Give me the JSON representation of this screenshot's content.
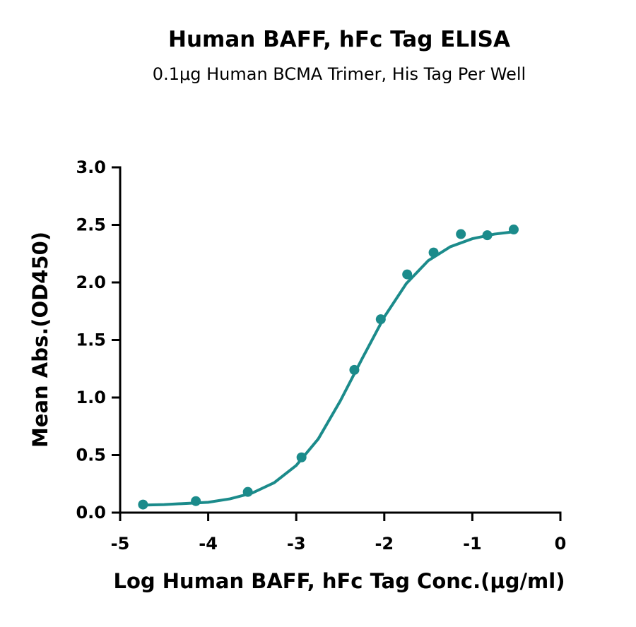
{
  "chart_data": {
    "type": "scatter",
    "title": "Human BAFF, hFc Tag ELISA",
    "subtitle": "0.1μg Human BCMA Trimer, His Tag Per Well",
    "x_label": "Log Human BAFF, hFc Tag Conc.(μg/ml)",
    "y_label": "Mean Abs.(OD450)",
    "color": "#1b8b8b",
    "x": [
      -4.74,
      -4.14,
      -3.55,
      -2.94,
      -2.34,
      -2.04,
      -1.74,
      -1.44,
      -1.13,
      -0.83,
      -0.53
    ],
    "values": [
      0.07,
      0.1,
      0.18,
      0.48,
      1.24,
      1.68,
      2.07,
      2.26,
      2.42,
      2.41,
      2.46
    ],
    "fit": {
      "x": [
        -4.75,
        -4.5,
        -4.25,
        -4.0,
        -3.75,
        -3.5,
        -3.25,
        -3.0,
        -2.75,
        -2.5,
        -2.25,
        -2.0,
        -1.75,
        -1.5,
        -1.25,
        -1.0,
        -0.75,
        -0.53
      ],
      "values": [
        0.065,
        0.07,
        0.08,
        0.09,
        0.12,
        0.17,
        0.26,
        0.41,
        0.64,
        0.97,
        1.34,
        1.7,
        1.99,
        2.19,
        2.31,
        2.38,
        2.42,
        2.44
      ]
    },
    "xlim": [
      -5,
      0
    ],
    "xticks": [
      -5,
      -4,
      -3,
      -2,
      -1,
      0
    ],
    "ylim": [
      0,
      3
    ],
    "yticks": [
      {
        "value": 0,
        "label": "0.0"
      },
      {
        "value": 0.5,
        "label": "0.5"
      },
      {
        "value": 1,
        "label": "1.0"
      },
      {
        "value": 1.5,
        "label": "1.5"
      },
      {
        "value": 2,
        "label": "2.0"
      },
      {
        "value": 2.5,
        "label": "2.5"
      },
      {
        "value": 3,
        "label": "3.0"
      }
    ]
  }
}
